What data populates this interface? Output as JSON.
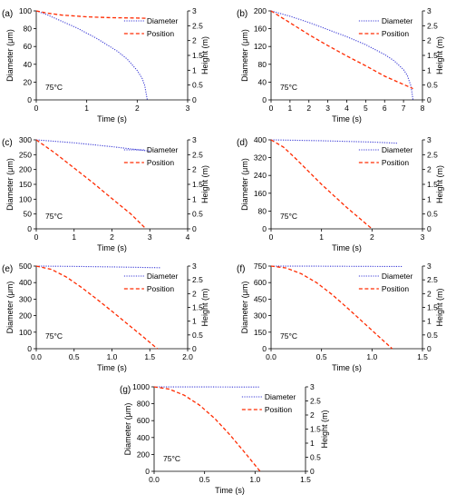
{
  "figure": {
    "temperature_label": "75°C",
    "colors": {
      "diameter": "#3b3bd6",
      "position": "#ff2a00",
      "axis": "#000000"
    },
    "legend": {
      "diameter": "Diameter",
      "position": "Position"
    }
  },
  "chart_data": [
    {
      "type": "line",
      "panel_label": "(a)",
      "xlabel": "Time (s)",
      "ylabel": "Diameter (μm)",
      "y2label": "Height (m)",
      "xlim": [
        0,
        3
      ],
      "xticks": [
        0,
        1,
        2,
        3
      ],
      "xtick_labels": [
        "0",
        "1",
        "2",
        "3"
      ],
      "ylim": [
        0,
        100
      ],
      "yticks": [
        0,
        20,
        40,
        60,
        80,
        100
      ],
      "ytick_labels": [
        "0",
        "20",
        "40",
        "60",
        "80",
        "100"
      ],
      "y2lim": [
        0,
        3
      ],
      "y2ticks": [
        0,
        0.5,
        1,
        1.5,
        2,
        2.5,
        3
      ],
      "y2tick_labels": [
        "0",
        "0.5",
        "1",
        "1.5",
        "2",
        "2.5",
        "3"
      ],
      "annotation": "75°C",
      "series": [
        {
          "name": "Diameter",
          "axis": "left",
          "style": "dotted",
          "x": [
            0,
            0.2,
            0.4,
            0.6,
            0.8,
            1.0,
            1.2,
            1.4,
            1.6,
            1.8,
            2.0,
            2.1,
            2.15,
            2.2
          ],
          "y": [
            100,
            96,
            91,
            86,
            81,
            75,
            69,
            62,
            55,
            46,
            33,
            24,
            16,
            0
          ]
        },
        {
          "name": "Position",
          "axis": "right",
          "style": "dashed",
          "x": [
            0,
            0.2,
            0.5,
            1.0,
            1.5,
            2.0,
            2.2
          ],
          "y": [
            3,
            2.93,
            2.86,
            2.8,
            2.77,
            2.76,
            2.75
          ]
        }
      ]
    },
    {
      "type": "line",
      "panel_label": "(b)",
      "xlabel": "Time (s)",
      "ylabel": "Diameter (μm)",
      "y2label": "Height (m)",
      "xlim": [
        0,
        8
      ],
      "xticks": [
        0,
        1,
        2,
        3,
        4,
        5,
        6,
        7,
        8
      ],
      "xtick_labels": [
        "0",
        "1",
        "2",
        "3",
        "4",
        "5",
        "6",
        "7",
        "8"
      ],
      "ylim": [
        0,
        200
      ],
      "yticks": [
        0,
        40,
        80,
        120,
        160,
        200
      ],
      "ytick_labels": [
        "0",
        "40",
        "80",
        "120",
        "160",
        "200"
      ],
      "y2lim": [
        0,
        3
      ],
      "y2ticks": [
        0,
        0.5,
        1,
        1.5,
        2,
        2.5,
        3
      ],
      "y2tick_labels": [
        "0",
        "0.5",
        "1",
        "1.5",
        "2",
        "2.5",
        "3"
      ],
      "annotation": "75°C",
      "series": [
        {
          "name": "Diameter",
          "axis": "left",
          "style": "dotted",
          "x": [
            0,
            1,
            2,
            3,
            4,
            5,
            6,
            6.5,
            7,
            7.2,
            7.4,
            7.5
          ],
          "y": [
            200,
            188,
            174,
            158,
            142,
            124,
            102,
            88,
            68,
            55,
            30,
            0
          ]
        },
        {
          "name": "Position",
          "axis": "right",
          "style": "dashed",
          "x": [
            0,
            1,
            2,
            3,
            4,
            5,
            6,
            7,
            7.5
          ],
          "y": [
            3,
            2.6,
            2.2,
            1.83,
            1.48,
            1.15,
            0.8,
            0.52,
            0.38
          ]
        }
      ]
    },
    {
      "type": "line",
      "panel_label": "(c)",
      "xlabel": "Time (s)",
      "ylabel": "Diameter (μm)",
      "y2label": "Height (m)",
      "xlim": [
        0,
        4
      ],
      "xticks": [
        0,
        1,
        2,
        3,
        4
      ],
      "xtick_labels": [
        "0",
        "1",
        "2",
        "3",
        "4"
      ],
      "ylim": [
        0,
        300
      ],
      "yticks": [
        0,
        50,
        100,
        150,
        200,
        250,
        300
      ],
      "ytick_labels": [
        "0",
        "50",
        "100",
        "150",
        "200",
        "250",
        "300"
      ],
      "y2lim": [
        0,
        3
      ],
      "y2ticks": [
        0,
        0.5,
        1,
        1.5,
        2,
        2.5,
        3
      ],
      "y2tick_labels": [
        "0",
        "0.5",
        "1",
        "1.5",
        "2",
        "2.5",
        "3"
      ],
      "annotation": "75°C",
      "series": [
        {
          "name": "Diameter",
          "axis": "left",
          "style": "dotted",
          "x": [
            0,
            1,
            2,
            3
          ],
          "y": [
            300,
            290,
            277,
            262
          ]
        },
        {
          "name": "Position",
          "axis": "right",
          "style": "dashed",
          "x": [
            0,
            0.5,
            1,
            1.5,
            2,
            2.5,
            2.9
          ],
          "y": [
            3,
            2.55,
            2.05,
            1.55,
            1.02,
            0.5,
            0
          ]
        }
      ]
    },
    {
      "type": "line",
      "panel_label": "(d)",
      "xlabel": "Time (s)",
      "ylabel": "Diameter (μm)",
      "y2label": "Height (m)",
      "xlim": [
        0,
        3
      ],
      "xticks": [
        0,
        1,
        2,
        3
      ],
      "xtick_labels": [
        "0",
        "1",
        "2",
        "3"
      ],
      "ylim": [
        0,
        400
      ],
      "yticks": [
        0,
        80,
        160,
        240,
        320,
        400
      ],
      "ytick_labels": [
        "0",
        "80",
        "160",
        "240",
        "320",
        "400"
      ],
      "y2lim": [
        0,
        3
      ],
      "y2ticks": [
        0,
        0.5,
        1,
        1.5,
        2,
        2.5,
        3
      ],
      "y2tick_labels": [
        "0",
        "0.5",
        "1",
        "1.5",
        "2",
        "2.5",
        "3"
      ],
      "annotation": "75°C",
      "series": [
        {
          "name": "Diameter",
          "axis": "left",
          "style": "dotted",
          "x": [
            0,
            1,
            2,
            2.5
          ],
          "y": [
            400,
            396,
            390,
            385
          ]
        },
        {
          "name": "Position",
          "axis": "right",
          "style": "dashed",
          "x": [
            0,
            0.25,
            0.5,
            1,
            1.5,
            2.0
          ],
          "y": [
            3,
            2.75,
            2.35,
            1.5,
            0.72,
            0
          ]
        }
      ]
    },
    {
      "type": "line",
      "panel_label": "(e)",
      "xlabel": "Time (s)",
      "ylabel": "Diameter (μm)",
      "y2label": "Height (m)",
      "xlim": [
        0,
        2
      ],
      "xticks": [
        0,
        0.5,
        1,
        1.5,
        2
      ],
      "xtick_labels": [
        "0.0",
        "0.5",
        "1.0",
        "1.5",
        "2.0"
      ],
      "ylim": [
        0,
        500
      ],
      "yticks": [
        0,
        100,
        200,
        300,
        400,
        500
      ],
      "ytick_labels": [
        "0",
        "100",
        "200",
        "300",
        "400",
        "500"
      ],
      "y2lim": [
        0,
        3
      ],
      "y2ticks": [
        0,
        0.5,
        1,
        1.5,
        2,
        2.5,
        3
      ],
      "y2tick_labels": [
        "0",
        "0.5",
        "1",
        "1.5",
        "2",
        "2.5",
        "3"
      ],
      "annotation": "75°C",
      "series": [
        {
          "name": "Diameter",
          "axis": "left",
          "style": "dotted",
          "x": [
            0,
            0.5,
            1,
            1.5,
            1.65
          ],
          "y": [
            500,
            498,
            495,
            491,
            490
          ]
        },
        {
          "name": "Position",
          "axis": "right",
          "style": "dashed",
          "x": [
            0,
            0.2,
            0.4,
            0.6,
            0.8,
            1.0,
            1.2,
            1.4,
            1.6
          ],
          "y": [
            3,
            2.88,
            2.6,
            2.22,
            1.8,
            1.36,
            0.91,
            0.46,
            0
          ]
        }
      ]
    },
    {
      "type": "line",
      "panel_label": "(f)",
      "xlabel": "Time (s)",
      "ylabel": "Diameter (μm)",
      "y2label": "Height (m)",
      "xlim": [
        0,
        1.5
      ],
      "xticks": [
        0,
        0.5,
        1,
        1.5
      ],
      "xtick_labels": [
        "0.0",
        "0.5",
        "1.0",
        "1.5"
      ],
      "ylim": [
        0,
        750
      ],
      "yticks": [
        0,
        150,
        300,
        450,
        600,
        750
      ],
      "ytick_labels": [
        "0",
        "150",
        "300",
        "450",
        "600",
        "750"
      ],
      "y2lim": [
        0,
        3
      ],
      "y2ticks": [
        0,
        0.5,
        1,
        1.5,
        2,
        2.5,
        3
      ],
      "y2tick_labels": [
        "0",
        "0.5",
        "1",
        "1.5",
        "2",
        "2.5",
        "3"
      ],
      "annotation": "75°C",
      "series": [
        {
          "name": "Diameter",
          "axis": "left",
          "style": "dotted",
          "x": [
            0,
            0.5,
            1,
            1.3
          ],
          "y": [
            750,
            749,
            747,
            746
          ]
        },
        {
          "name": "Position",
          "axis": "right",
          "style": "dashed",
          "x": [
            0,
            0.15,
            0.3,
            0.45,
            0.6,
            0.75,
            0.9,
            1.05,
            1.2
          ],
          "y": [
            3,
            2.93,
            2.72,
            2.4,
            1.98,
            1.5,
            1.0,
            0.5,
            0
          ]
        }
      ]
    },
    {
      "type": "line",
      "panel_label": "(g)",
      "xlabel": "Time (s)",
      "ylabel": "Diameter (μm)",
      "y2label": "Height (m)",
      "xlim": [
        0,
        1.5
      ],
      "xticks": [
        0,
        0.5,
        1,
        1.5
      ],
      "xtick_labels": [
        "0.0",
        "0.5",
        "1.0",
        "1.5"
      ],
      "ylim": [
        0,
        1000
      ],
      "yticks": [
        0,
        200,
        400,
        600,
        800,
        1000
      ],
      "ytick_labels": [
        "0",
        "200",
        "400",
        "600",
        "800",
        "1000"
      ],
      "y2lim": [
        0,
        3
      ],
      "y2ticks": [
        0,
        0.5,
        1,
        1.5,
        2,
        2.5,
        3
      ],
      "y2tick_labels": [
        "0",
        "0.5",
        "1",
        "1.5",
        "2",
        "2.5",
        "3"
      ],
      "annotation": "75°C",
      "series": [
        {
          "name": "Diameter",
          "axis": "left",
          "style": "dotted",
          "x": [
            0,
            0.5,
            1,
            1.05
          ],
          "y": [
            1000,
            999,
            998,
            998
          ]
        },
        {
          "name": "Position",
          "axis": "right",
          "style": "dashed",
          "x": [
            0,
            0.15,
            0.3,
            0.45,
            0.6,
            0.75,
            0.9,
            1.05
          ],
          "y": [
            3,
            2.92,
            2.7,
            2.35,
            1.88,
            1.3,
            0.66,
            0
          ]
        }
      ]
    }
  ]
}
